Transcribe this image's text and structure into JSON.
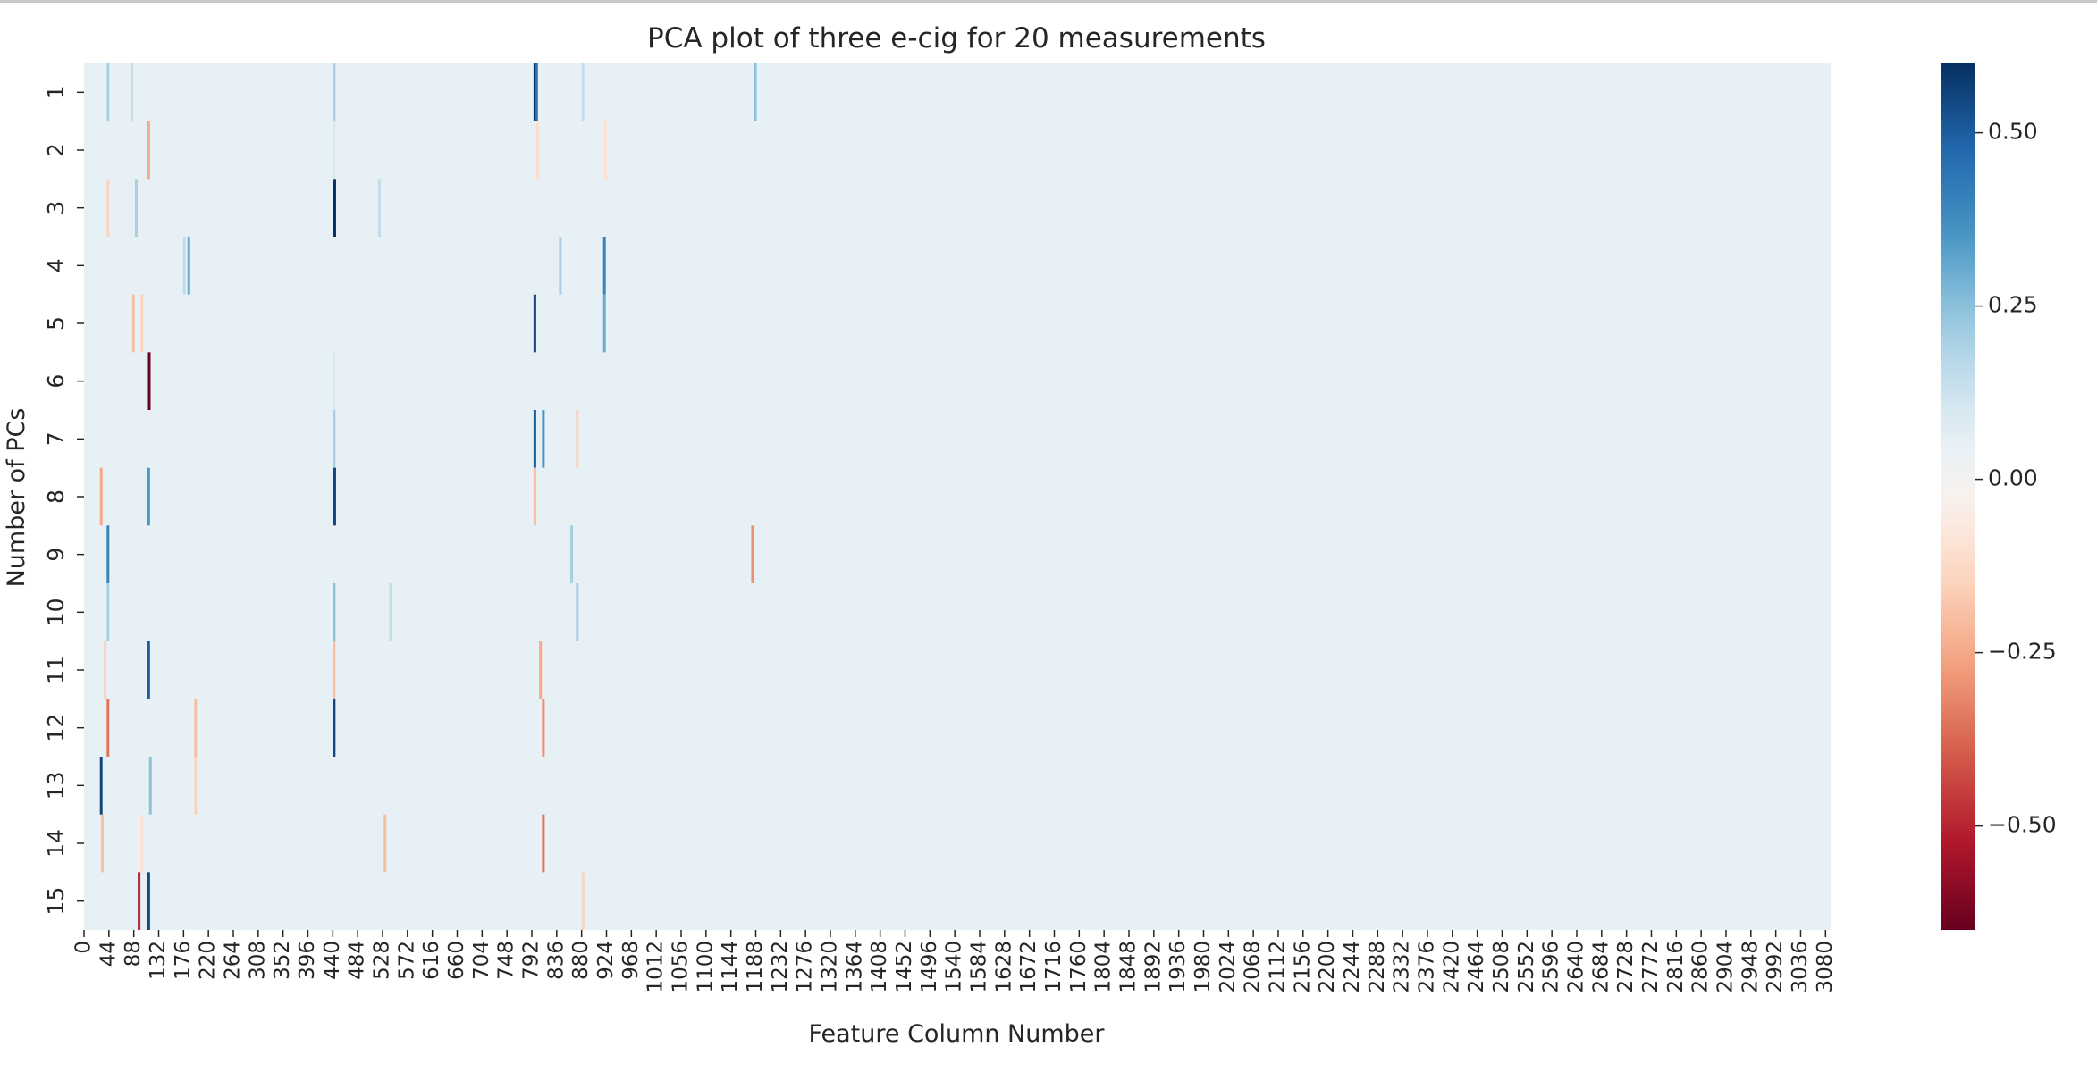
{
  "chart_data": {
    "type": "heatmap",
    "title": "PCA plot of three e-cig for 20 measurements",
    "xlabel": "Feature Column Number",
    "ylabel": "Number of PCs",
    "rows": [
      "1",
      "2",
      "3",
      "4",
      "5",
      "6",
      "7",
      "8",
      "9",
      "10",
      "11",
      "12",
      "13",
      "14",
      "15"
    ],
    "x_range": [
      0,
      3089
    ],
    "x_ticks": [
      0,
      44,
      88,
      132,
      176,
      220,
      264,
      308,
      352,
      396,
      440,
      484,
      528,
      572,
      616,
      660,
      704,
      748,
      792,
      836,
      880,
      924,
      968,
      1012,
      1056,
      1100,
      1144,
      1188,
      1232,
      1276,
      1320,
      1364,
      1408,
      1452,
      1496,
      1540,
      1584,
      1628,
      1672,
      1716,
      1760,
      1804,
      1848,
      1892,
      1936,
      1980,
      2024,
      2068,
      2112,
      2156,
      2200,
      2244,
      2288,
      2332,
      2376,
      2420,
      2464,
      2508,
      2552,
      2596,
      2640,
      2684,
      2728,
      2772,
      2816,
      2860,
      2904,
      2948,
      2992,
      3036,
      3080
    ],
    "background_value": 0.05,
    "notable_cells": [
      {
        "row": 1,
        "col": 40,
        "value": 0.2
      },
      {
        "row": 1,
        "col": 82,
        "value": 0.15
      },
      {
        "row": 1,
        "col": 440,
        "value": 0.2
      },
      {
        "row": 1,
        "col": 795,
        "value": 0.6
      },
      {
        "row": 1,
        "col": 798,
        "value": 0.45
      },
      {
        "row": 1,
        "col": 880,
        "value": 0.15
      },
      {
        "row": 1,
        "col": 1185,
        "value": 0.25
      },
      {
        "row": 2,
        "col": 112,
        "value": -0.25
      },
      {
        "row": 2,
        "col": 440,
        "value": 0.1
      },
      {
        "row": 2,
        "col": 800,
        "value": -0.12
      },
      {
        "row": 2,
        "col": 920,
        "value": -0.1
      },
      {
        "row": 3,
        "col": 40,
        "value": -0.15
      },
      {
        "row": 3,
        "col": 90,
        "value": 0.2
      },
      {
        "row": 3,
        "col": 441,
        "value": 0.6
      },
      {
        "row": 3,
        "col": 520,
        "value": 0.15
      },
      {
        "row": 4,
        "col": 183,
        "value": 0.3
      },
      {
        "row": 4,
        "col": 175,
        "value": 0.15
      },
      {
        "row": 4,
        "col": 918,
        "value": 0.4
      },
      {
        "row": 4,
        "col": 840,
        "value": 0.2
      },
      {
        "row": 5,
        "col": 795,
        "value": 0.55
      },
      {
        "row": 5,
        "col": 85,
        "value": -0.2
      },
      {
        "row": 5,
        "col": 100,
        "value": -0.15
      },
      {
        "row": 5,
        "col": 918,
        "value": 0.3
      },
      {
        "row": 6,
        "col": 113,
        "value": -0.65
      },
      {
        "row": 6,
        "col": 440,
        "value": 0.1
      },
      {
        "row": 7,
        "col": 795,
        "value": 0.5
      },
      {
        "row": 7,
        "col": 810,
        "value": 0.35
      },
      {
        "row": 7,
        "col": 440,
        "value": 0.2
      },
      {
        "row": 7,
        "col": 870,
        "value": -0.15
      },
      {
        "row": 8,
        "col": 28,
        "value": -0.25
      },
      {
        "row": 8,
        "col": 112,
        "value": 0.35
      },
      {
        "row": 8,
        "col": 441,
        "value": 0.55
      },
      {
        "row": 8,
        "col": 795,
        "value": -0.2
      },
      {
        "row": 9,
        "col": 40,
        "value": 0.4
      },
      {
        "row": 9,
        "col": 1180,
        "value": -0.3
      },
      {
        "row": 9,
        "col": 860,
        "value": 0.2
      },
      {
        "row": 10,
        "col": 40,
        "value": 0.2
      },
      {
        "row": 10,
        "col": 440,
        "value": 0.25
      },
      {
        "row": 10,
        "col": 540,
        "value": 0.15
      },
      {
        "row": 10,
        "col": 870,
        "value": 0.2
      },
      {
        "row": 11,
        "col": 112,
        "value": 0.5
      },
      {
        "row": 11,
        "col": 440,
        "value": -0.2
      },
      {
        "row": 11,
        "col": 805,
        "value": -0.25
      },
      {
        "row": 11,
        "col": 35,
        "value": -0.15
      },
      {
        "row": 12,
        "col": 40,
        "value": -0.35
      },
      {
        "row": 12,
        "col": 440,
        "value": 0.55
      },
      {
        "row": 12,
        "col": 810,
        "value": -0.3
      },
      {
        "row": 12,
        "col": 195,
        "value": -0.2
      },
      {
        "row": 13,
        "col": 28,
        "value": 0.55
      },
      {
        "row": 13,
        "col": 115,
        "value": 0.25
      },
      {
        "row": 13,
        "col": 195,
        "value": -0.15
      },
      {
        "row": 14,
        "col": 30,
        "value": -0.2
      },
      {
        "row": 14,
        "col": 810,
        "value": -0.35
      },
      {
        "row": 14,
        "col": 530,
        "value": -0.2
      },
      {
        "row": 14,
        "col": 100,
        "value": -0.1
      },
      {
        "row": 15,
        "col": 95,
        "value": -0.5
      },
      {
        "row": 15,
        "col": 112,
        "value": 0.55
      },
      {
        "row": 15,
        "col": 880,
        "value": -0.15
      }
    ],
    "colorbar": {
      "colormap": "RdBu",
      "vmin": -0.65,
      "vmax": 0.6,
      "ticks": [
        0.5,
        0.25,
        0.0,
        -0.25,
        -0.5
      ],
      "tick_labels": [
        "0.50",
        "0.25",
        "0.00",
        "−0.25",
        "−0.50"
      ]
    },
    "grid": false,
    "legend": "none"
  }
}
